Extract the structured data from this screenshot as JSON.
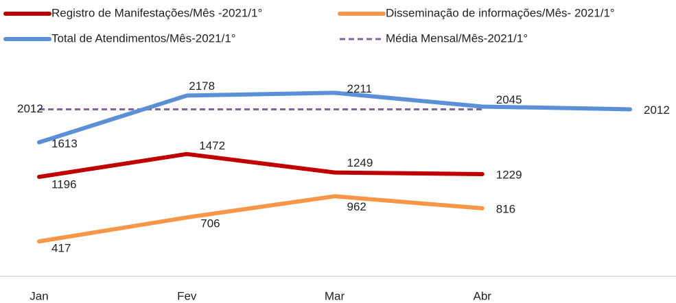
{
  "chart_data": {
    "type": "line",
    "categories": [
      "Jan",
      "Fev",
      "Mar",
      "Abr",
      null
    ],
    "ylim": [
      0,
      2500
    ],
    "legend": "top",
    "series": [
      {
        "name": "Registro de Manifestações/Mês -2021/1°",
        "color": "#c00000",
        "values": [
          1196,
          1472,
          1249,
          1229,
          null
        ]
      },
      {
        "name": "Disseminação de informações/Mês- 2021/1°",
        "color": "#f79646",
        "values": [
          417,
          706,
          962,
          816,
          null
        ]
      },
      {
        "name": "Total de Atendimentos/Mês-2021/1°",
        "color": "#5b8fd6",
        "values": [
          1613,
          2178,
          2211,
          2045,
          2012
        ]
      },
      {
        "name": "Média Mensal/Mês-2021/1°",
        "color": "#8064a2",
        "dashed": true,
        "values": [
          2012,
          2012,
          2012,
          2012,
          null
        ],
        "value_labels": [
          "2012",
          null,
          null,
          null,
          null
        ]
      }
    ]
  }
}
